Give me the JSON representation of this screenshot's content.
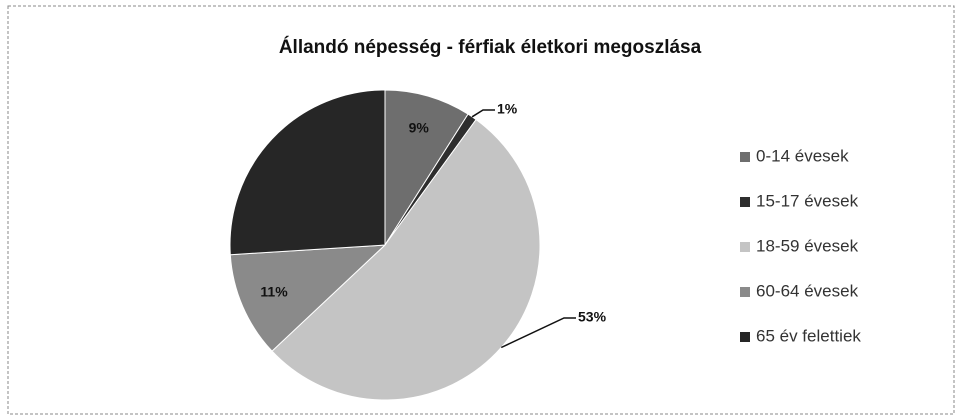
{
  "chart_data": {
    "type": "pie",
    "title": "Állandó népesség - férfiak életkori megoszlása",
    "categories": [
      "0-14 évesek",
      "15-17 évesek",
      "18-59 évesek",
      "60-64 évesek",
      "65 év felettiek"
    ],
    "values": [
      9,
      1,
      53,
      11,
      26
    ],
    "value_labels": [
      "9%",
      "1%",
      "53%",
      "11%",
      null
    ],
    "colors": [
      "#6e6e6e",
      "#2e2e2e",
      "#c4c4c4",
      "#8a8a8a",
      "#262626"
    ],
    "legend": "right"
  }
}
